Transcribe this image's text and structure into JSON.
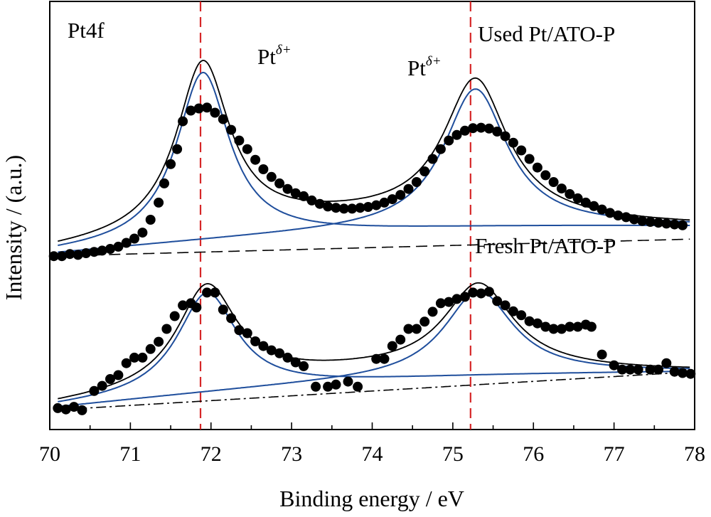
{
  "chart_data": {
    "type": "scatter",
    "title": "",
    "xlabel": "Binding energy / eV",
    "ylabel": "Intensity / (a.u.)",
    "xlim": [
      70,
      78
    ],
    "ylim": [
      0,
      1
    ],
    "x_ticks": [
      "70",
      "71",
      "72",
      "73",
      "74",
      "75",
      "76",
      "77",
      "78"
    ],
    "grid": false,
    "legend": "none",
    "annotations": {
      "region": "Pt4f",
      "label_left": "Pt",
      "label_left_sup": "δ+",
      "label_right": "Pt",
      "label_right_sup": "δ+",
      "sample_top": "Used Pt/ATO-P",
      "sample_bottom": "Fresh Pt/ATO-P"
    },
    "reference_lines": [
      71.87,
      75.22
    ],
    "colors": {
      "points": "#000000",
      "envelope": "#000000",
      "component": "#1f4e9c",
      "reference": "#d62728",
      "background": "#000000"
    },
    "panels": [
      {
        "name": "Used Pt/ATO-P",
        "background_endpoints": [
          0.405,
          0.445
        ],
        "fit_background_endpoints": [
          0.41,
          0.475
        ],
        "peaks": [
          {
            "center": 71.9,
            "height": 0.395,
            "width": 0.4
          },
          {
            "center": 75.28,
            "height": 0.325,
            "width": 0.48
          }
        ],
        "envelope_offset": 0.03,
        "data": [
          [
            70.05,
            0.405
          ],
          [
            70.15,
            0.405
          ],
          [
            70.25,
            0.41
          ],
          [
            70.35,
            0.408
          ],
          [
            70.45,
            0.412
          ],
          [
            70.55,
            0.415
          ],
          [
            70.65,
            0.418
          ],
          [
            70.75,
            0.422
          ],
          [
            70.85,
            0.427
          ],
          [
            70.95,
            0.436
          ],
          [
            71.05,
            0.446
          ],
          [
            71.15,
            0.46
          ],
          [
            71.25,
            0.49
          ],
          [
            71.35,
            0.53
          ],
          [
            71.42,
            0.575
          ],
          [
            71.5,
            0.62
          ],
          [
            71.58,
            0.655
          ],
          [
            71.65,
            0.72
          ],
          [
            71.75,
            0.745
          ],
          [
            71.85,
            0.75
          ],
          [
            71.95,
            0.752
          ],
          [
            72.05,
            0.74
          ],
          [
            72.15,
            0.725
          ],
          [
            72.25,
            0.7
          ],
          [
            72.35,
            0.675
          ],
          [
            72.45,
            0.655
          ],
          [
            72.55,
            0.63
          ],
          [
            72.65,
            0.608
          ],
          [
            72.75,
            0.59
          ],
          [
            72.85,
            0.575
          ],
          [
            72.95,
            0.562
          ],
          [
            73.05,
            0.552
          ],
          [
            73.15,
            0.545
          ],
          [
            73.25,
            0.535
          ],
          [
            73.35,
            0.527
          ],
          [
            73.45,
            0.521
          ],
          [
            73.55,
            0.518
          ],
          [
            73.65,
            0.516
          ],
          [
            73.75,
            0.516
          ],
          [
            73.85,
            0.518
          ],
          [
            73.95,
            0.52
          ],
          [
            74.05,
            0.524
          ],
          [
            74.15,
            0.53
          ],
          [
            74.25,
            0.538
          ],
          [
            74.35,
            0.548
          ],
          [
            74.45,
            0.562
          ],
          [
            74.55,
            0.578
          ],
          [
            74.65,
            0.603
          ],
          [
            74.75,
            0.632
          ],
          [
            74.85,
            0.655
          ],
          [
            74.95,
            0.675
          ],
          [
            75.05,
            0.688
          ],
          [
            75.15,
            0.698
          ],
          [
            75.25,
            0.704
          ],
          [
            75.35,
            0.705
          ],
          [
            75.45,
            0.703
          ],
          [
            75.55,
            0.696
          ],
          [
            75.65,
            0.685
          ],
          [
            75.75,
            0.67
          ],
          [
            75.85,
            0.652
          ],
          [
            75.95,
            0.632
          ],
          [
            76.05,
            0.612
          ],
          [
            76.15,
            0.594
          ],
          [
            76.25,
            0.578
          ],
          [
            76.35,
            0.563
          ],
          [
            76.45,
            0.55
          ],
          [
            76.55,
            0.54
          ],
          [
            76.65,
            0.53
          ],
          [
            76.75,
            0.522
          ],
          [
            76.85,
            0.514
          ],
          [
            76.95,
            0.506
          ],
          [
            77.05,
            0.5
          ],
          [
            77.15,
            0.496
          ],
          [
            77.25,
            0.491
          ],
          [
            77.35,
            0.487
          ],
          [
            77.45,
            0.485
          ],
          [
            77.55,
            0.483
          ],
          [
            77.65,
            0.481
          ],
          [
            77.75,
            0.479
          ],
          [
            77.85,
            0.477
          ]
        ]
      },
      {
        "name": "Fresh Pt/ATO-P",
        "background_endpoints": [
          0.045,
          0.135
        ],
        "fit_background_endpoints": [
          0.05,
          0.135
        ],
        "peaks": [
          {
            "center": 71.95,
            "height": 0.235,
            "width": 0.45
          },
          {
            "center": 75.32,
            "height": 0.2,
            "width": 0.52
          }
        ],
        "envelope_offset": 0.022,
        "data": [
          [
            70.1,
            0.05
          ],
          [
            70.2,
            0.047
          ],
          [
            70.3,
            0.053
          ],
          [
            70.4,
            0.045
          ],
          [
            70.55,
            0.09
          ],
          [
            70.65,
            0.102
          ],
          [
            70.75,
            0.118
          ],
          [
            70.85,
            0.127
          ],
          [
            70.95,
            0.155
          ],
          [
            71.05,
            0.168
          ],
          [
            71.15,
            0.168
          ],
          [
            71.25,
            0.188
          ],
          [
            71.35,
            0.205
          ],
          [
            71.45,
            0.235
          ],
          [
            71.55,
            0.265
          ],
          [
            71.65,
            0.29
          ],
          [
            71.75,
            0.295
          ],
          [
            71.82,
            0.285
          ],
          [
            71.95,
            0.32
          ],
          [
            72.05,
            0.32
          ],
          [
            72.15,
            0.28
          ],
          [
            72.25,
            0.26
          ],
          [
            72.35,
            0.232
          ],
          [
            72.45,
            0.225
          ],
          [
            72.55,
            0.206
          ],
          [
            72.65,
            0.195
          ],
          [
            72.75,
            0.185
          ],
          [
            72.85,
            0.178
          ],
          [
            72.95,
            0.168
          ],
          [
            73.05,
            0.157
          ],
          [
            73.15,
            0.148
          ],
          [
            73.3,
            0.1
          ],
          [
            73.45,
            0.1
          ],
          [
            73.55,
            0.105
          ],
          [
            73.7,
            0.112
          ],
          [
            73.82,
            0.1
          ],
          [
            74.05,
            0.165
          ],
          [
            74.15,
            0.165
          ],
          [
            74.25,
            0.195
          ],
          [
            74.35,
            0.21
          ],
          [
            74.45,
            0.235
          ],
          [
            74.55,
            0.235
          ],
          [
            74.65,
            0.252
          ],
          [
            74.75,
            0.275
          ],
          [
            74.85,
            0.295
          ],
          [
            74.95,
            0.298
          ],
          [
            75.05,
            0.305
          ],
          [
            75.15,
            0.31
          ],
          [
            75.25,
            0.32
          ],
          [
            75.35,
            0.318
          ],
          [
            75.45,
            0.322
          ],
          [
            75.55,
            0.3
          ],
          [
            75.65,
            0.29
          ],
          [
            75.75,
            0.276
          ],
          [
            75.85,
            0.267
          ],
          [
            75.95,
            0.253
          ],
          [
            76.05,
            0.248
          ],
          [
            76.15,
            0.24
          ],
          [
            76.25,
            0.235
          ],
          [
            76.35,
            0.235
          ],
          [
            76.45,
            0.24
          ],
          [
            76.55,
            0.24
          ],
          [
            76.65,
            0.245
          ],
          [
            76.72,
            0.24
          ],
          [
            76.85,
            0.175
          ],
          [
            77.0,
            0.15
          ],
          [
            77.1,
            0.14
          ],
          [
            77.2,
            0.14
          ],
          [
            77.3,
            0.14
          ],
          [
            77.45,
            0.14
          ],
          [
            77.55,
            0.14
          ],
          [
            77.65,
            0.155
          ],
          [
            77.75,
            0.135
          ],
          [
            77.85,
            0.132
          ],
          [
            77.95,
            0.13
          ]
        ]
      }
    ]
  }
}
